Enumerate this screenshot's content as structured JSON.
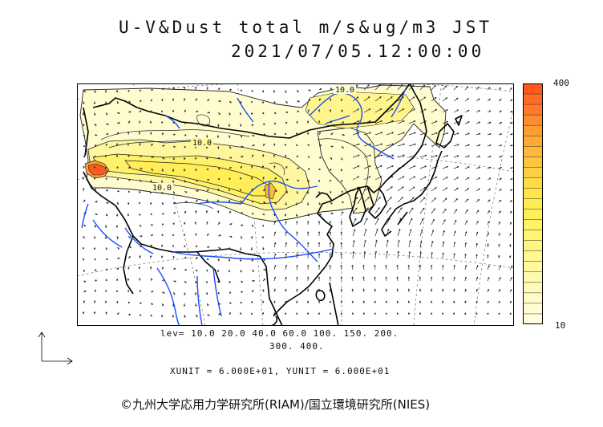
{
  "header": {
    "title": "U-V&Dust total m/s&ug/m3 JST",
    "datetime": "2021/07/05.12:00:00"
  },
  "map": {
    "contour_labels": [
      "10.0",
      "10.0",
      "10.0"
    ]
  },
  "colorbar": {
    "max_label": "400",
    "min_label": "10",
    "colors": [
      "#ff5a1e",
      "#ff6a24",
      "#ff7a2a",
      "#ff8c2e",
      "#ff9c32",
      "#ffaa36",
      "#ffb83a",
      "#ffc43e",
      "#ffd042",
      "#ffdb46",
      "#ffe44a",
      "#ffec50",
      "#fff05a",
      "#fff266",
      "#fff474",
      "#fff682",
      "#fff790",
      "#fff89e",
      "#fff9ac",
      "#fffaba",
      "#fffbc6",
      "#fffcd2",
      "#fffddc"
    ]
  },
  "legend": {
    "levels_line1": "lev= 10.0 20.0 40.0 60.0 100. 150. 200.",
    "levels_line2": "300. 400.",
    "units": "XUNIT = 6.000E+01, YUNIT = 6.000E+01"
  },
  "footer": {
    "credit": "©九州大学応用力学研究所(RIAM)/国立環境研究所(NIES)"
  }
}
